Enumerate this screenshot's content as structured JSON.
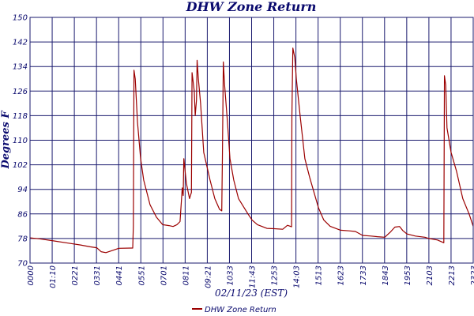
{
  "chart_data": {
    "type": "line",
    "title": "DHW Zone Return",
    "xlabel": "02/11/23 (EST)",
    "ylabel": "Degrees F",
    "ylim": [
      70,
      150
    ],
    "yticks": [
      70,
      78,
      86,
      94,
      102,
      110,
      118,
      126,
      134,
      142,
      150
    ],
    "xlim": [
      "00:00",
      "23:23"
    ],
    "xticks": [
      "0000",
      "01:10",
      "0221",
      "0331",
      "0441",
      "0551",
      "0701",
      "0811",
      "09:21",
      "1033",
      "11:43",
      "1253",
      "14:03",
      "1513",
      "1623",
      "1733",
      "1843",
      "1953",
      "2103",
      "2213",
      "2323"
    ],
    "grid": true,
    "legend": "bottom-center",
    "colors": {
      "series": "#9b0000",
      "grid": "#1a1a6e",
      "text": "#0a0a6e"
    },
    "series": [
      {
        "name": "DHW Zone Return",
        "points": [
          [
            "00:00",
            78.2
          ],
          [
            "00:30",
            77.9
          ],
          [
            "01:10",
            77.3
          ],
          [
            "02:00",
            76.5
          ],
          [
            "02:40",
            75.9
          ],
          [
            "03:10",
            75.3
          ],
          [
            "03:31",
            75.0
          ],
          [
            "03:45",
            73.7
          ],
          [
            "04:00",
            73.4
          ],
          [
            "04:15",
            73.9
          ],
          [
            "04:41",
            74.8
          ],
          [
            "05:20",
            74.9
          ],
          [
            "05:25",
            74.9
          ],
          [
            "05:27",
            82.0
          ],
          [
            "05:29",
            132.8
          ],
          [
            "05:33",
            130.0
          ],
          [
            "05:40",
            116.0
          ],
          [
            "05:50",
            104.0
          ],
          [
            "06:00",
            97.0
          ],
          [
            "06:20",
            89.0
          ],
          [
            "06:40",
            85.0
          ],
          [
            "07:00",
            82.5
          ],
          [
            "07:20",
            82.2
          ],
          [
            "07:33",
            81.9
          ],
          [
            "07:45",
            82.5
          ],
          [
            "07:55",
            83.5
          ],
          [
            "08:02",
            94.5
          ],
          [
            "08:05",
            92.0
          ],
          [
            "08:07",
            104.0
          ],
          [
            "08:10",
            101.0
          ],
          [
            "08:15",
            96.0
          ],
          [
            "08:25",
            91.0
          ],
          [
            "08:31",
            93.0
          ],
          [
            "08:33",
            132.0
          ],
          [
            "08:40",
            126.0
          ],
          [
            "08:43",
            118.0
          ],
          [
            "08:47",
            123.0
          ],
          [
            "08:49",
            136.0
          ],
          [
            "08:53",
            130.0
          ],
          [
            "09:00",
            122.0
          ],
          [
            "09:10",
            106.0
          ],
          [
            "09:30",
            97.0
          ],
          [
            "09:45",
            91.0
          ],
          [
            "10:00",
            87.5
          ],
          [
            "10:07",
            87.0
          ],
          [
            "10:09",
            104.0
          ],
          [
            "10:12",
            135.5
          ],
          [
            "10:16",
            128.0
          ],
          [
            "10:25",
            116.0
          ],
          [
            "10:33",
            104.0
          ],
          [
            "10:45",
            97.0
          ],
          [
            "11:00",
            91.0
          ],
          [
            "11:30",
            86.0
          ],
          [
            "11:43",
            84.0
          ],
          [
            "12:00",
            82.5
          ],
          [
            "12:30",
            81.3
          ],
          [
            "12:53",
            81.2
          ],
          [
            "13:20",
            81.0
          ],
          [
            "13:35",
            82.3
          ],
          [
            "13:48",
            81.8
          ],
          [
            "13:49",
            118.0
          ],
          [
            "13:52",
            140.0
          ],
          [
            "13:58",
            137.0
          ],
          [
            "14:03",
            130.0
          ],
          [
            "14:15",
            118.0
          ],
          [
            "14:30",
            104.0
          ],
          [
            "14:45",
            98.0
          ],
          [
            "15:13",
            88.0
          ],
          [
            "15:30",
            84.0
          ],
          [
            "15:50",
            82.0
          ],
          [
            "16:23",
            80.7
          ],
          [
            "16:50",
            80.5
          ],
          [
            "17:10",
            80.3
          ],
          [
            "17:33",
            79.0
          ],
          [
            "18:00",
            78.8
          ],
          [
            "18:20",
            78.6
          ],
          [
            "18:43",
            78.4
          ],
          [
            "19:00",
            80.0
          ],
          [
            "19:15",
            81.7
          ],
          [
            "19:30",
            81.9
          ],
          [
            "19:40",
            80.6
          ],
          [
            "19:53",
            79.5
          ],
          [
            "20:20",
            78.8
          ],
          [
            "20:50",
            78.4
          ],
          [
            "21:03",
            78.0
          ],
          [
            "21:30",
            77.5
          ],
          [
            "21:50",
            76.6
          ],
          [
            "21:52",
            131.0
          ],
          [
            "21:56",
            128.0
          ],
          [
            "22:00",
            114.0
          ],
          [
            "22:13",
            106.0
          ],
          [
            "22:30",
            100.0
          ],
          [
            "22:50",
            91.0
          ],
          [
            "23:10",
            86.0
          ],
          [
            "23:23",
            82.0
          ]
        ]
      }
    ]
  }
}
